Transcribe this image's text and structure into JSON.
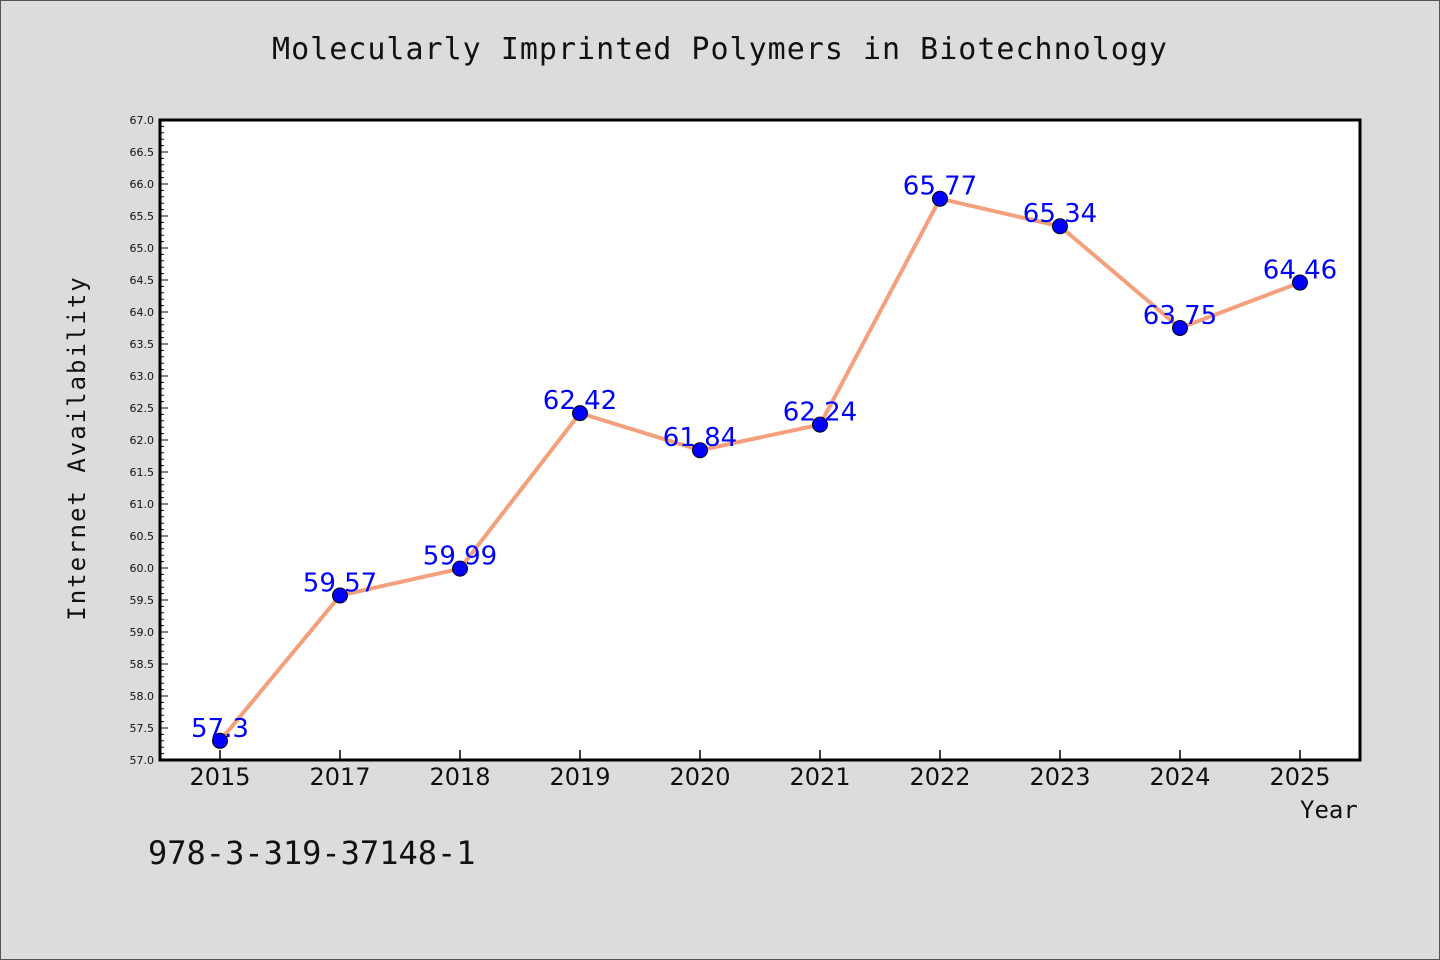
{
  "chart_data": {
    "type": "line",
    "title": "Molecularly Imprinted Polymers in Biotechnology",
    "xlabel": "Year",
    "ylabel": "Internet Availability",
    "categories": [
      "2015",
      "2017",
      "2018",
      "2019",
      "2020",
      "2021",
      "2022",
      "2023",
      "2024",
      "2025"
    ],
    "series": [
      {
        "values": [
          57.3,
          59.57,
          59.99,
          62.42,
          61.84,
          62.24,
          65.77,
          65.34,
          63.75,
          64.46
        ],
        "labels": [
          "57.3",
          "59.57",
          "59.99",
          "62.42",
          "61.84",
          "62.24",
          "65.77",
          "65.34",
          "63.75",
          "64.46"
        ]
      }
    ],
    "ylim": [
      57.0,
      67.0
    ],
    "yticks": [
      "57.0",
      "57.5",
      "58.0",
      "58.5",
      "59.0",
      "59.5",
      "60.0",
      "60.5",
      "61.0",
      "61.5",
      "62.0",
      "62.5",
      "63.0",
      "63.5",
      "64.0",
      "64.5",
      "65.0",
      "65.5",
      "66.0",
      "66.5",
      "67.0"
    ],
    "grid": false,
    "colors": {
      "line": "#f4a07c",
      "marker": "#0000ff",
      "label": "#0000ff",
      "background": "#dcdcdc",
      "plot_background": "#ffffff"
    }
  },
  "footnote": "978-3-319-37148-1"
}
